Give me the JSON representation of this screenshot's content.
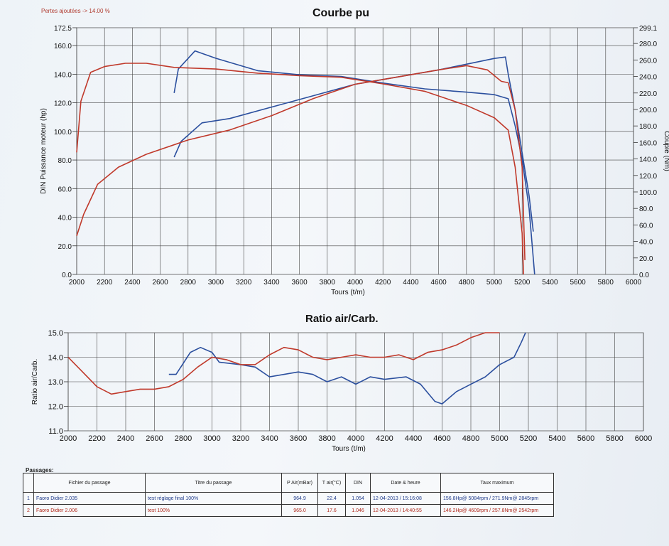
{
  "header": {
    "note": "Pertes ajoutées -> 14.00 %"
  },
  "colors": {
    "run1": "#2b4f9e",
    "run2": "#c0392b",
    "grid": "#444444"
  },
  "chart_data": [
    {
      "type": "line",
      "title": "Courbe pu",
      "xlabel": "Tours (t/m)",
      "ylabel": "DIN Puissance moteur (hp)",
      "y2label": "Couple (Nm)",
      "xlim": [
        2000,
        6000
      ],
      "ylim": [
        0,
        172.5
      ],
      "y2lim": [
        0,
        299.1
      ],
      "x_ticks": [
        "2000",
        "2200",
        "2400",
        "2600",
        "2800",
        "3000",
        "3200",
        "3400",
        "3600",
        "3800",
        "4000",
        "4200",
        "4400",
        "4600",
        "4800",
        "5000",
        "5200",
        "5400",
        "5600",
        "5800",
        "6000"
      ],
      "y_ticks": [
        "0.0",
        "20.0",
        "40.0",
        "60.0",
        "80.0",
        "100.0",
        "120.0",
        "140.0",
        "160.0",
        "172.5"
      ],
      "y2_ticks": [
        "0.0",
        "20.0",
        "40.0",
        "60.0",
        "80.0",
        "100.0",
        "120.0",
        "140.0",
        "160.0",
        "180.0",
        "200.0",
        "220.0",
        "240.0",
        "260.0",
        "280.0",
        "299.1"
      ],
      "grid": true,
      "series": [
        {
          "name": "Faoro Didier 2.035 - puissance",
          "axis": "left",
          "color": "run1",
          "x": [
            2700,
            2750,
            2900,
            3100,
            3400,
            3700,
            4000,
            4300,
            4600,
            4800,
            5000,
            5080,
            5100,
            5150,
            5200,
            5250,
            5280
          ],
          "y": [
            82,
            93,
            106,
            109,
            117,
            125,
            133,
            138,
            143,
            147,
            151,
            152,
            140,
            115,
            85,
            55,
            30
          ]
        },
        {
          "name": "Faoro Didier 2.035 - couple",
          "axis": "right",
          "color": "run1",
          "x": [
            2700,
            2730,
            2850,
            3000,
            3300,
            3600,
            3900,
            4200,
            4500,
            4800,
            5000,
            5100,
            5150,
            5200,
            5250,
            5290
          ],
          "y": [
            220,
            249,
            271,
            262,
            247,
            242,
            240,
            232,
            225,
            221,
            218,
            213,
            180,
            140,
            80,
            0
          ]
        },
        {
          "name": "Faoro Didier 2.006 - puissance",
          "axis": "left",
          "color": "run2",
          "x": [
            2000,
            2050,
            2150,
            2300,
            2500,
            2800,
            3100,
            3400,
            3700,
            4000,
            4300,
            4600,
            4800,
            4950,
            5050,
            5100,
            5150,
            5200,
            5220
          ],
          "y": [
            27,
            42,
            63,
            75,
            84,
            94,
            101,
            111,
            123,
            133,
            138,
            143,
            146,
            143,
            135,
            134,
            115,
            75,
            10
          ]
        },
        {
          "name": "Faoro Didier 2.006 - couple",
          "axis": "right",
          "color": "run2",
          "x": [
            2000,
            2030,
            2100,
            2200,
            2350,
            2500,
            2700,
            3000,
            3300,
            3600,
            3900,
            4200,
            4500,
            4800,
            5000,
            5100,
            5150,
            5200,
            5210
          ],
          "y": [
            148,
            210,
            245,
            252,
            256,
            256,
            251,
            249,
            244,
            241,
            239,
            231,
            222,
            205,
            190,
            175,
            130,
            50,
            0
          ]
        }
      ]
    },
    {
      "type": "line",
      "title": "Ratio air/Carb.",
      "xlabel": "Tours (t/m)",
      "ylabel": "Ratio air/Carb.",
      "xlim": [
        2000,
        6000
      ],
      "ylim": [
        11.0,
        15.0
      ],
      "x_ticks": [
        "2000",
        "2200",
        "2400",
        "2600",
        "2800",
        "3000",
        "3200",
        "3400",
        "3600",
        "3800",
        "4000",
        "4200",
        "4400",
        "4600",
        "4800",
        "5000",
        "5200",
        "5400",
        "5600",
        "5800",
        "6000"
      ],
      "y_ticks": [
        "11.0",
        "12.0",
        "13.0",
        "14.0",
        "15.0"
      ],
      "grid": true,
      "series": [
        {
          "name": "Faoro Didier 2.035",
          "color": "run1",
          "x": [
            2700,
            2750,
            2850,
            2920,
            3000,
            3050,
            3200,
            3300,
            3400,
            3600,
            3700,
            3800,
            3900,
            4000,
            4100,
            4200,
            4350,
            4450,
            4550,
            4600,
            4700,
            4800,
            4900,
            5000,
            5100,
            5150,
            5180
          ],
          "y": [
            13.3,
            13.3,
            14.2,
            14.4,
            14.2,
            13.8,
            13.7,
            13.6,
            13.2,
            13.4,
            13.3,
            13.0,
            13.2,
            12.9,
            13.2,
            13.1,
            13.2,
            12.9,
            12.2,
            12.1,
            12.6,
            12.9,
            13.2,
            13.7,
            14.0,
            14.6,
            15.0
          ]
        },
        {
          "name": "Faoro Didier 2.006",
          "color": "run2",
          "x": [
            2000,
            2100,
            2200,
            2300,
            2400,
            2500,
            2600,
            2700,
            2800,
            2900,
            3000,
            3100,
            3200,
            3300,
            3400,
            3500,
            3600,
            3700,
            3800,
            3900,
            4000,
            4100,
            4200,
            4300,
            4400,
            4500,
            4600,
            4700,
            4800,
            4900,
            5000
          ],
          "y": [
            14.0,
            13.4,
            12.8,
            12.5,
            12.6,
            12.7,
            12.7,
            12.8,
            13.1,
            13.6,
            14.0,
            13.9,
            13.7,
            13.7,
            14.1,
            14.4,
            14.3,
            14.0,
            13.9,
            14.0,
            14.1,
            14.0,
            14.0,
            14.1,
            13.9,
            14.2,
            14.3,
            14.5,
            14.8,
            15.0,
            15.2
          ]
        }
      ]
    }
  ],
  "passages": {
    "label": "Passages:",
    "headers": [
      "",
      "Fichier du passage",
      "Titre du passage",
      "P Air(mBar)",
      "T air(°C)",
      "DIN",
      "Date & heure",
      "Taux maximum"
    ],
    "rows": [
      [
        "1",
        "Faoro Didier 2.035",
        "test réglage final 100%",
        "964.9",
        "22.4",
        "1.054",
        "12-04-2013 / 15:16:08",
        "156.8Hp@ 5084rpm / 271.9Nm@ 2845rpm"
      ],
      [
        "2",
        "Faoro Didier 2.006",
        "test 100%",
        "965.0",
        "17.6",
        "1.046",
        "12-04-2013 / 14:40:55",
        "146.2Hp@ 4609rpm / 257.8Nm@ 2542rpm"
      ]
    ]
  }
}
